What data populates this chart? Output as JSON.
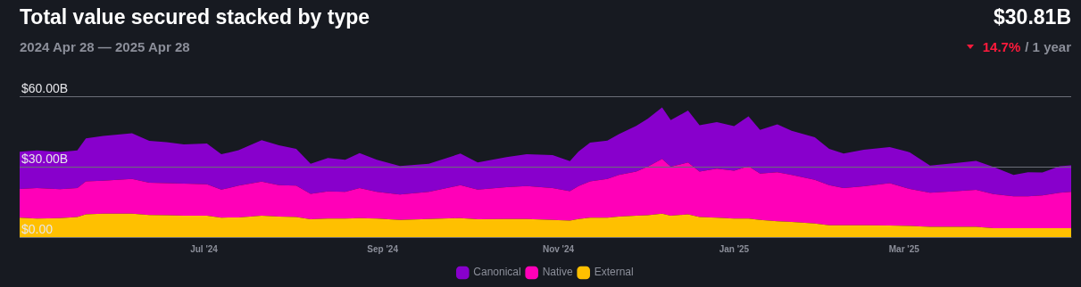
{
  "chart_data": {
    "type": "area",
    "title": "Total value secured stacked by type",
    "subtitle": "2024 Apr 28 — 2025 Apr 28",
    "annotations": [
      "$30.81B",
      "14.7%",
      "/ 1 year"
    ],
    "x": [
      "2024-04-28",
      "2024-05-04",
      "2024-05-12",
      "2024-05-18",
      "2024-05-21",
      "2024-05-27",
      "2024-06-06",
      "2024-06-12",
      "2024-06-18",
      "2024-06-24",
      "2024-07-02",
      "2024-07-07",
      "2024-07-13",
      "2024-07-21",
      "2024-07-27",
      "2024-08-02",
      "2024-08-07",
      "2024-08-13",
      "2024-08-19",
      "2024-08-24",
      "2024-08-30",
      "2024-09-07",
      "2024-09-17",
      "2024-09-28",
      "2024-10-04",
      "2024-10-14",
      "2024-10-21",
      "2024-10-30",
      "2024-11-05",
      "2024-11-08",
      "2024-11-12",
      "2024-11-18",
      "2024-11-22",
      "2024-11-28",
      "2024-12-02",
      "2024-12-07",
      "2024-12-10",
      "2024-12-16",
      "2024-12-20",
      "2024-12-26",
      "2025-01-01",
      "2025-01-06",
      "2025-01-10",
      "2025-01-16",
      "2025-01-21",
      "2025-01-29",
      "2025-02-03",
      "2025-02-08",
      "2025-02-15",
      "2025-02-24",
      "2025-03-03",
      "2025-03-10",
      "2025-03-18",
      "2025-03-26",
      "2025-04-01",
      "2025-04-08",
      "2025-04-13",
      "2025-04-18",
      "2025-04-24",
      "2025-04-28"
    ],
    "series": [
      {
        "name": "External",
        "color": "#ffc000",
        "values": [
          8.3,
          7.9,
          8.1,
          8.5,
          9.7,
          10.0,
          10.0,
          9.4,
          9.3,
          9.1,
          9.1,
          8.3,
          8.4,
          9.1,
          8.7,
          8.5,
          7.6,
          7.9,
          7.9,
          8.1,
          7.9,
          7.3,
          7.7,
          8.1,
          7.6,
          7.7,
          7.7,
          7.3,
          7.0,
          7.7,
          8.3,
          8.3,
          8.7,
          9.1,
          9.3,
          10.0,
          9.1,
          9.7,
          8.5,
          8.3,
          7.9,
          7.9,
          7.3,
          6.7,
          6.5,
          5.8,
          5.0,
          5.0,
          5.0,
          4.9,
          4.7,
          4.4,
          4.4,
          4.4,
          3.8,
          3.8,
          3.8,
          3.8,
          3.8,
          3.8
        ]
      },
      {
        "name": "Native",
        "color": "#ff00b8",
        "values": [
          12.2,
          13.0,
          12.3,
          12.4,
          14.0,
          14.0,
          14.8,
          13.8,
          13.7,
          13.7,
          13.4,
          11.9,
          13.5,
          14.5,
          13.4,
          13.4,
          10.8,
          11.6,
          11.4,
          12.8,
          11.4,
          10.8,
          11.6,
          14.0,
          12.6,
          13.6,
          14.0,
          13.6,
          12.6,
          14.0,
          15.4,
          16.5,
          17.8,
          18.8,
          20.7,
          23.3,
          20.9,
          22.1,
          19.4,
          20.8,
          20.4,
          22.3,
          19.8,
          20.9,
          20.0,
          18.6,
          17.1,
          15.9,
          16.6,
          18.1,
          15.8,
          14.5,
          15.1,
          15.7,
          14.5,
          13.6,
          13.6,
          14.0,
          15.1,
          15.5
        ]
      },
      {
        "name": "Canonical",
        "color": "#8800cc",
        "values": [
          15.9,
          16.0,
          15.9,
          16.0,
          18.4,
          19.1,
          19.4,
          17.8,
          17.4,
          16.7,
          17.4,
          15.1,
          15.1,
          17.7,
          17.0,
          15.7,
          12.8,
          14.2,
          13.6,
          14.9,
          13.6,
          12.2,
          11.9,
          13.5,
          11.6,
          12.8,
          13.6,
          14.0,
          12.8,
          14.8,
          16.6,
          16.3,
          17.4,
          19.5,
          20.4,
          22.0,
          19.8,
          22.1,
          19.8,
          19.9,
          19.0,
          21.3,
          18.6,
          20.4,
          18.8,
          18.1,
          15.5,
          14.7,
          15.6,
          15.4,
          15.6,
          11.6,
          11.9,
          12.4,
          11.6,
          9.1,
          10.2,
          9.7,
          11.3,
          11.3
        ]
      }
    ],
    "stacked": true,
    "xlim": [
      "2024-04-28",
      "2025-04-28"
    ],
    "xticks": [
      {
        "value": "2024-07-01",
        "label": "Jul '24"
      },
      {
        "value": "2024-09-01",
        "label": "Sep '24"
      },
      {
        "value": "2024-11-01",
        "label": "Nov '24"
      },
      {
        "value": "2025-01-01",
        "label": "Jan '25"
      },
      {
        "value": "2025-03-01",
        "label": "Mar '25"
      }
    ],
    "ylim": [
      0,
      60
    ],
    "yticks": [
      {
        "value": 0,
        "label": "$0.00"
      },
      {
        "value": 30,
        "label": "$30.00B"
      },
      {
        "value": 60,
        "label": "$60.00B"
      }
    ],
    "grid": "y",
    "legend": "bottom"
  }
}
